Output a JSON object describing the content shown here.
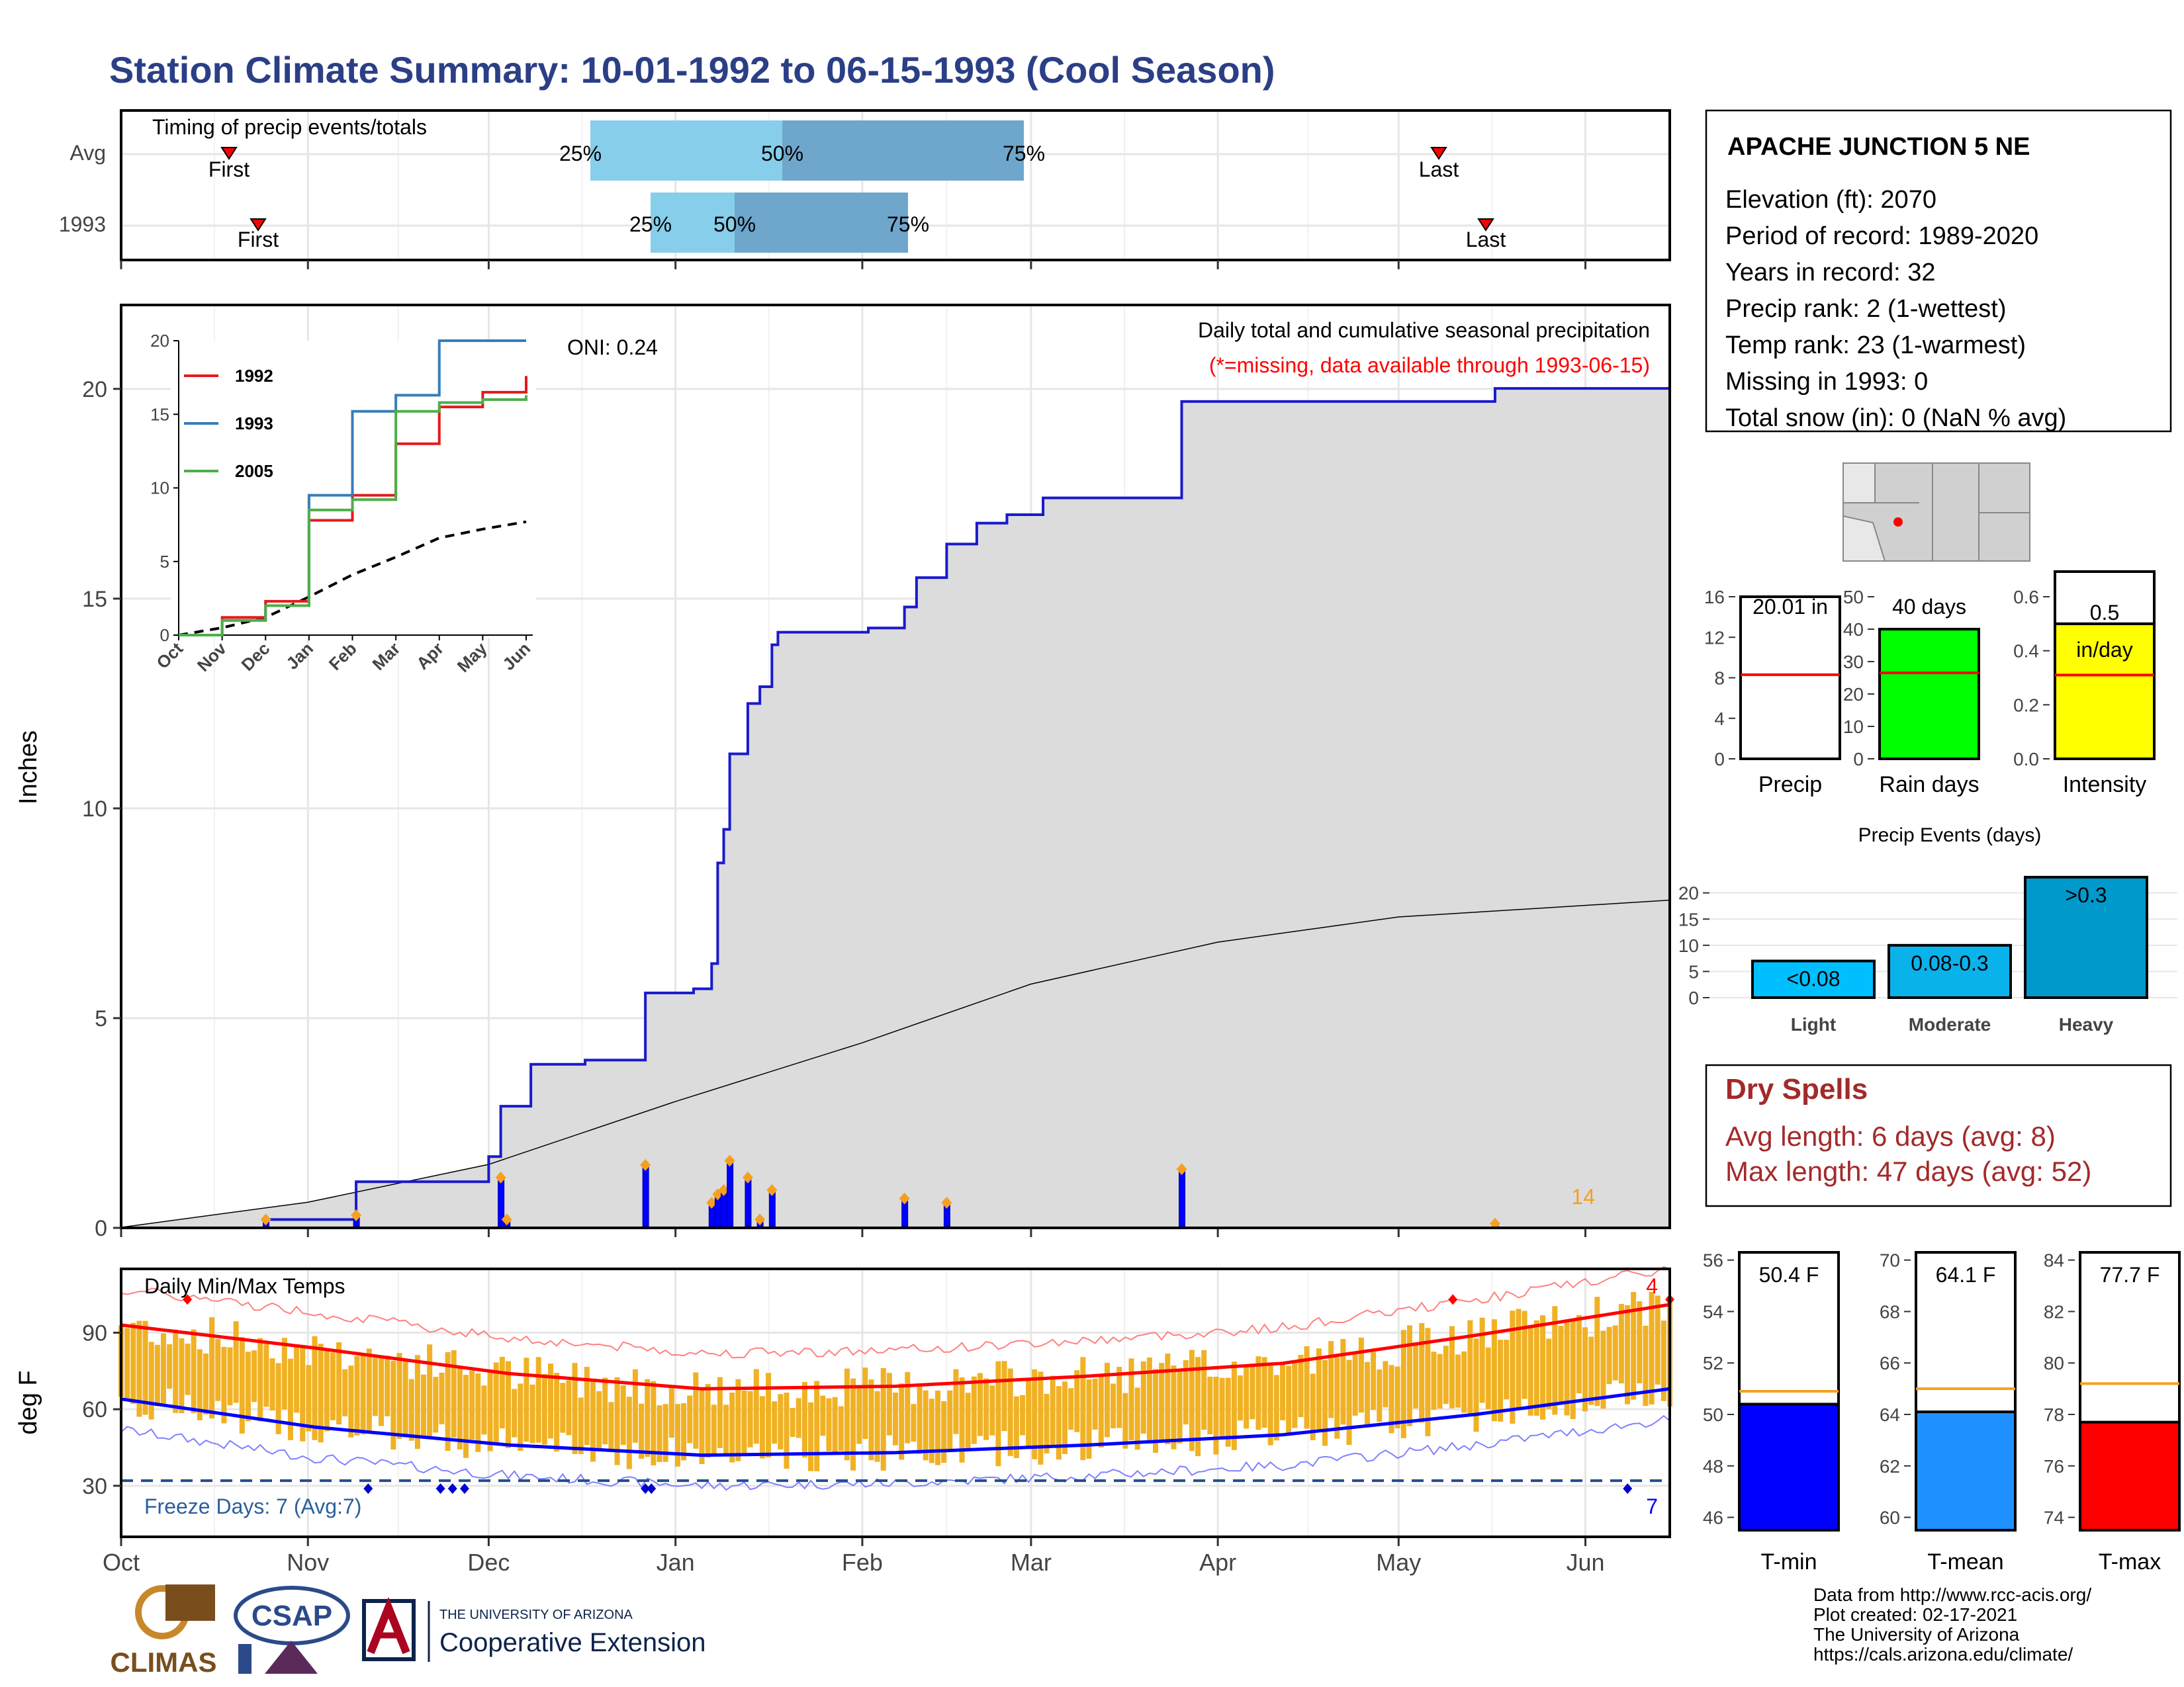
{
  "page_title": "Station Climate Summary: 10-01-1992 to 06-15-1993 (Cool Season)",
  "colors": {
    "title": "#2b3f86",
    "green": "#008800",
    "brown": "#8b5a14",
    "blue_line": "#1a1acc",
    "grey_fill": "#dcdcdc",
    "light_blue": "#87ceeb",
    "mid_blue": "#6fa6cb",
    "orange": "#f5a020",
    "temp_bar": "#f0b124",
    "red": "#ff0000",
    "dark_red": "#a32a2a"
  },
  "timing_panel": {
    "title": "Timing of precip events/totals",
    "rows": [
      {
        "label": "Avg",
        "first_label": "First",
        "last_label": "Last",
        "p25": "25%",
        "p50": "50%",
        "p75": "75%"
      },
      {
        "label": "1993",
        "first_label": "First",
        "last_label": "Last",
        "p25": "25%",
        "p50": "50%",
        "p75": "75%"
      }
    ]
  },
  "precip_panel": {
    "oni": "ONI: 0.24",
    "title": "Daily total and cumulative seasonal precipitation",
    "missing_note": "(*=missing, data available through 1993-06-15)",
    "ylabel": "Inches",
    "yticks": [
      "0",
      "5",
      "10",
      "15",
      "20"
    ],
    "count_label": "14"
  },
  "inset": {
    "yticks": [
      "0",
      "5",
      "10",
      "15",
      "20"
    ],
    "xticks": [
      "Oct",
      "Nov",
      "Dec",
      "Jan",
      "Feb",
      "Mar",
      "Apr",
      "May",
      "Jun"
    ],
    "legend": [
      {
        "name": "1992",
        "color": "#e41a1c"
      },
      {
        "name": "1993",
        "color": "#377eb8"
      },
      {
        "name": "2005",
        "color": "#4daf4a"
      }
    ]
  },
  "temp_panel": {
    "title": "Daily Min/Max Temps",
    "ylabel": "deg F",
    "yticks": [
      "30",
      "60",
      "90"
    ],
    "freeze_label": "Freeze Days: 7 (Avg:7)",
    "freeze_count": "7",
    "hot_count": "4"
  },
  "xaxis_months": [
    "Oct",
    "Nov",
    "Dec",
    "Jan",
    "Feb",
    "Mar",
    "Apr",
    "May",
    "Jun"
  ],
  "station_box": {
    "name": "APACHE JUNCTION 5 NE",
    "lines": [
      "Elevation (ft): 2070",
      "Period of record: 1989-2020",
      "Years in record: 32",
      "Precip rank: 2 (1-wettest)",
      "Temp rank: 23 (1-warmest)",
      "Missing in 1993: 0",
      "Total snow (in): 0 (NaN % avg)"
    ]
  },
  "mini_bars": [
    {
      "label": "Precip",
      "value_text": "20.01 in",
      "value_text2": "",
      "color": "#ffffff",
      "yticks": [
        "0",
        "4",
        "8",
        "12",
        "16"
      ],
      "ymax": 16,
      "value": 20.01,
      "avg": 8.3
    },
    {
      "label": "Rain days",
      "value_text": "40 days",
      "value_text2": "",
      "color": "#00ff00",
      "yticks": [
        "0",
        "10",
        "20",
        "30",
        "40",
        "50"
      ],
      "ymax": 50,
      "value": 40,
      "avg": 26.5
    },
    {
      "label": "Intensity",
      "value_text": "0.5",
      "value_text2": "in/day",
      "color": "#ffff00",
      "yticks": [
        "0.0",
        "0.2",
        "0.4",
        "0.6"
      ],
      "ymax": 0.6,
      "value": 0.5,
      "avg": 0.31
    }
  ],
  "precip_events": {
    "title": "Precip Events (days)",
    "yticks": [
      "0",
      "5",
      "10",
      "15",
      "20"
    ],
    "bars": [
      {
        "label": "Light",
        "range": "<0.08",
        "value": 7
      },
      {
        "label": "Moderate",
        "range": "0.08-0.3",
        "value": 10
      },
      {
        "label": "Heavy",
        "range": ">0.3",
        "value": 23
      }
    ]
  },
  "dry_spells": {
    "title": "Dry Spells",
    "avg_line": "Avg length: 6 days (avg: 8)",
    "max_line": "Max length: 47 days (avg: 52)"
  },
  "temp_bars": [
    {
      "label": "T-min",
      "value_text": "50.4 F",
      "color": "#0000ff",
      "yticks": [
        "46",
        "48",
        "50",
        "52",
        "54",
        "56"
      ],
      "ymin": 45.5,
      "ymax": 56.3,
      "value": 50.4,
      "avg": 50.9
    },
    {
      "label": "T-mean",
      "value_text": "64.1 F",
      "color": "#1e90ff",
      "yticks": [
        "60",
        "62",
        "64",
        "66",
        "68",
        "70"
      ],
      "ymin": 59.5,
      "ymax": 70.3,
      "value": 64.1,
      "avg": 65.0
    },
    {
      "label": "T-max",
      "value_text": "77.7 F",
      "color": "#ff0000",
      "yticks": [
        "74",
        "76",
        "78",
        "80",
        "82",
        "84"
      ],
      "ymin": 73.5,
      "ymax": 84.3,
      "value": 77.7,
      "avg": 79.2
    }
  ],
  "footer": {
    "lines": [
      "Data from http://www.rcc-acis.org/",
      "Plot created: 02-17-2021",
      "The University of Arizona",
      "https://cals.arizona.edu/climate/"
    ],
    "logo_climas": "CLIMAS",
    "logo_csap": "CSAP",
    "logo_ua_top": "THE UNIVERSITY OF ARIZONA",
    "logo_ua_main": "Cooperative Extension"
  },
  "chart_data": [
    {
      "type": "area",
      "title": "Daily total and cumulative seasonal precipitation",
      "ylabel": "Inches",
      "ylim": [
        0,
        22
      ],
      "x_start": "1992-10-01",
      "x_end": "1993-06-15",
      "cumulative_1993_steps": [
        [
          "1992-10-01",
          0
        ],
        [
          "1992-10-25",
          0.2
        ],
        [
          "1992-11-09",
          1.1
        ],
        [
          "1992-12-01",
          1.7
        ],
        [
          "1992-12-03",
          2.9
        ],
        [
          "1992-12-08",
          3.9
        ],
        [
          "1992-12-17",
          4.0
        ],
        [
          "1992-12-27",
          5.6
        ],
        [
          "1993-01-04",
          5.7
        ],
        [
          "1993-01-07",
          6.3
        ],
        [
          "1993-01-08",
          8.7
        ],
        [
          "1993-01-09",
          9.5
        ],
        [
          "1993-01-10",
          11.3
        ],
        [
          "1993-01-13",
          12.5
        ],
        [
          "1993-01-15",
          12.9
        ],
        [
          "1993-01-17",
          13.9
        ],
        [
          "1993-01-18",
          14.2
        ],
        [
          "1993-02-02",
          14.3
        ],
        [
          "1993-02-08",
          14.8
        ],
        [
          "1993-02-10",
          15.5
        ],
        [
          "1993-02-15",
          16.3
        ],
        [
          "1993-02-20",
          16.8
        ],
        [
          "1993-02-25",
          17.0
        ],
        [
          "1993-03-03",
          17.4
        ],
        [
          "1993-03-26",
          19.7
        ],
        [
          "1993-05-17",
          20.01
        ],
        [
          "1993-06-15",
          20.01
        ]
      ],
      "average_cumulative": [
        [
          "1992-10-01",
          0
        ],
        [
          "1992-11-01",
          0.6
        ],
        [
          "1992-12-01",
          1.5
        ],
        [
          "1993-01-01",
          3.0
        ],
        [
          "1993-02-01",
          4.4
        ],
        [
          "1993-03-01",
          5.8
        ],
        [
          "1993-04-01",
          6.8
        ],
        [
          "1993-05-01",
          7.4
        ],
        [
          "1993-06-15",
          7.8
        ]
      ],
      "daily_precip": [
        [
          "1992-10-25",
          0.2
        ],
        [
          "1992-11-09",
          0.3
        ],
        [
          "1992-12-03",
          1.2
        ],
        [
          "1992-12-04",
          0.2
        ],
        [
          "1992-12-27",
          1.5
        ],
        [
          "1993-01-07",
          0.6
        ],
        [
          "1993-01-08",
          0.8
        ],
        [
          "1993-01-09",
          0.9
        ],
        [
          "1993-01-10",
          1.6
        ],
        [
          "1993-01-13",
          1.2
        ],
        [
          "1993-01-15",
          0.2
        ],
        [
          "1993-01-17",
          0.9
        ],
        [
          "1993-02-08",
          0.7
        ],
        [
          "1993-02-15",
          0.6
        ],
        [
          "1993-03-26",
          1.4
        ],
        [
          "1993-05-17",
          0.1
        ]
      ]
    },
    {
      "type": "line",
      "title": "",
      "x": [
        "Oct",
        "Nov",
        "Dec",
        "Jan",
        "Feb",
        "Mar",
        "Apr",
        "May",
        "Jun"
      ],
      "ylim": [
        0,
        20
      ],
      "series": [
        {
          "name": "1992",
          "values": [
            0,
            1.2,
            2.3,
            7.8,
            9.5,
            13.0,
            15.5,
            16.5,
            17.6
          ]
        },
        {
          "name": "1993",
          "values": [
            0,
            1.0,
            2.0,
            9.5,
            15.2,
            16.3,
            20.0,
            20.0,
            20.0
          ]
        },
        {
          "name": "2005",
          "values": [
            0,
            1.0,
            2.0,
            8.5,
            9.2,
            15.2,
            15.8,
            16.0,
            16.3
          ]
        }
      ]
    },
    {
      "type": "line",
      "title": "Daily Min/Max Temps",
      "ylabel": "deg F",
      "ylim": [
        10,
        115
      ],
      "x": [
        "1992-10-01",
        "1992-11-01",
        "1992-12-01",
        "1993-01-01",
        "1993-02-01",
        "1993-03-01",
        "1993-04-01",
        "1993-05-01",
        "1993-06-15"
      ],
      "series": [
        {
          "name": "avg max",
          "values": [
            93,
            84,
            74,
            68,
            69,
            73,
            78,
            89,
            101
          ]
        },
        {
          "name": "avg min",
          "values": [
            64,
            53,
            46,
            42,
            43,
            46,
            50,
            58,
            68
          ]
        }
      ],
      "freeze_line": 32
    }
  ]
}
